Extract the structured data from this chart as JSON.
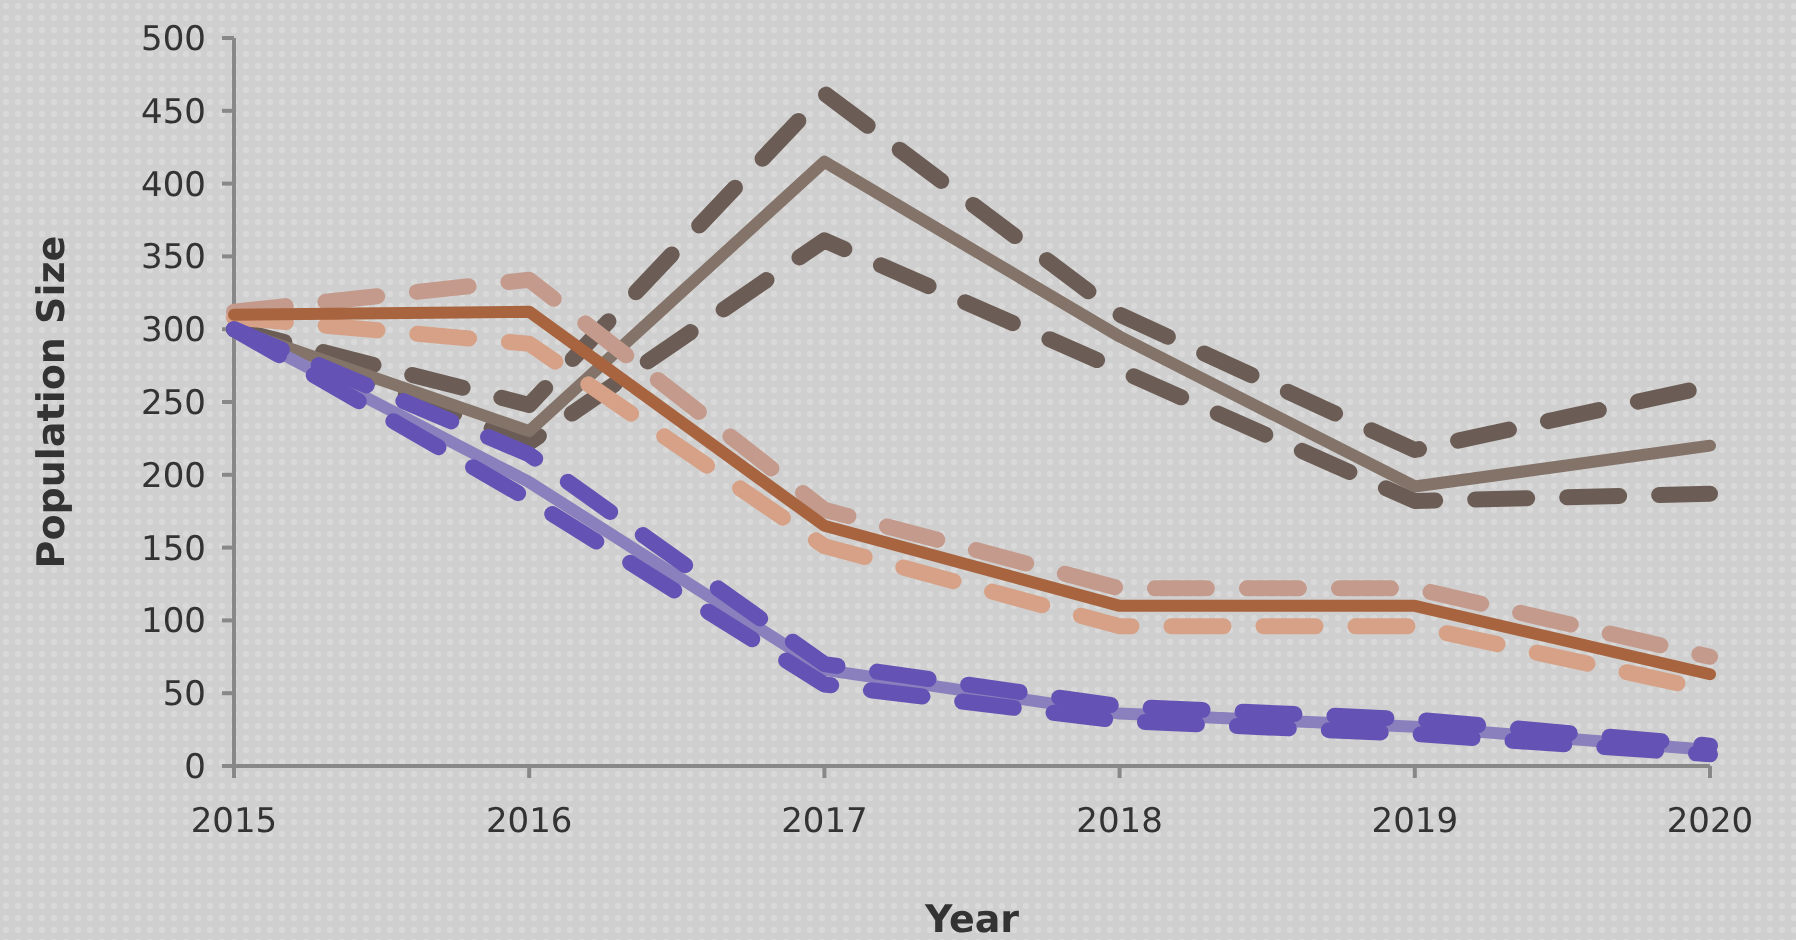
{
  "chart_data": {
    "type": "line",
    "xlabel": "Year",
    "ylabel": "Population Size",
    "x": [
      2015,
      2016,
      2017,
      2018,
      2019,
      2020
    ],
    "xlim": [
      2015,
      2020
    ],
    "xticks": [
      2015,
      2016,
      2017,
      2018,
      2019,
      2020
    ],
    "ylim": [
      0,
      500
    ],
    "yticks": [
      0,
      50,
      100,
      150,
      200,
      250,
      300,
      350,
      400,
      450,
      500
    ],
    "grid": false,
    "marker": "none",
    "series": [
      {
        "color": "#6b5d55",
        "line_style": "dashed",
        "values": [
          300,
          248,
          462,
          310,
          217,
          261
        ]
      },
      {
        "color": "#6b5d55",
        "line_style": "dashed",
        "values": [
          300,
          222,
          361,
          272,
          182,
          187
        ]
      },
      {
        "color": "#837369",
        "line_style": "solid",
        "values": [
          300,
          230,
          415,
          295,
          192,
          220
        ]
      },
      {
        "color": "#c49a8c",
        "line_style": "dashed",
        "values": [
          312,
          334,
          176,
          122,
          122,
          75
        ]
      },
      {
        "color": "#d6a186",
        "line_style": "dashed",
        "values": [
          308,
          290,
          151,
          96,
          96,
          52
        ]
      },
      {
        "color": "#a8643f",
        "line_style": "solid",
        "values": [
          310,
          312,
          165,
          110,
          110,
          63
        ]
      },
      {
        "color": "#8a80bd",
        "line_style": "solid",
        "values": [
          300,
          195,
          66,
          36,
          27,
          11
        ]
      },
      {
        "color": "#6453b4",
        "line_style": "dashed",
        "values": [
          300,
          214,
          70,
          41,
          32,
          14
        ]
      },
      {
        "color": "#6453b4",
        "line_style": "dashed",
        "values": [
          300,
          183,
          56,
          31,
          22,
          8
        ]
      }
    ]
  }
}
